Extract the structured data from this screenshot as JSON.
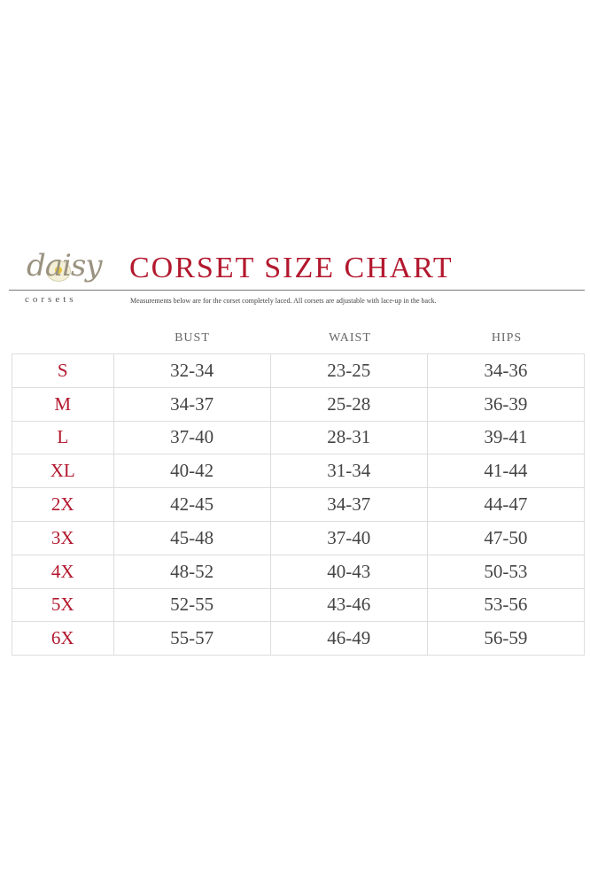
{
  "logo": {
    "script": "daisy",
    "word": "corsets"
  },
  "title": "CORSET SIZE CHART",
  "subtitle": "Measurements below are for the corset completely laced.  All corsets are adjustable with lace-up in the back.",
  "headers": [
    "BUST",
    "WAIST",
    "HIPS"
  ],
  "colors": {
    "accent": "#b3182e",
    "text": "#444444"
  },
  "rows": [
    {
      "size": "S",
      "bust": "32-34",
      "waist": "23-25",
      "hips": "34-36"
    },
    {
      "size": "M",
      "bust": "34-37",
      "waist": "25-28",
      "hips": "36-39"
    },
    {
      "size": "L",
      "bust": "37-40",
      "waist": "28-31",
      "hips": "39-41"
    },
    {
      "size": "XL",
      "bust": "40-42",
      "waist": "31-34",
      "hips": "41-44"
    },
    {
      "size": "2X",
      "bust": "42-45",
      "waist": "34-37",
      "hips": "44-47"
    },
    {
      "size": "3X",
      "bust": "45-48",
      "waist": "37-40",
      "hips": "47-50"
    },
    {
      "size": "4X",
      "bust": "48-52",
      "waist": "40-43",
      "hips": "50-53"
    },
    {
      "size": "5X",
      "bust": "52-55",
      "waist": "43-46",
      "hips": "53-56"
    },
    {
      "size": "6X",
      "bust": "55-57",
      "waist": "46-49",
      "hips": "56-59"
    }
  ]
}
